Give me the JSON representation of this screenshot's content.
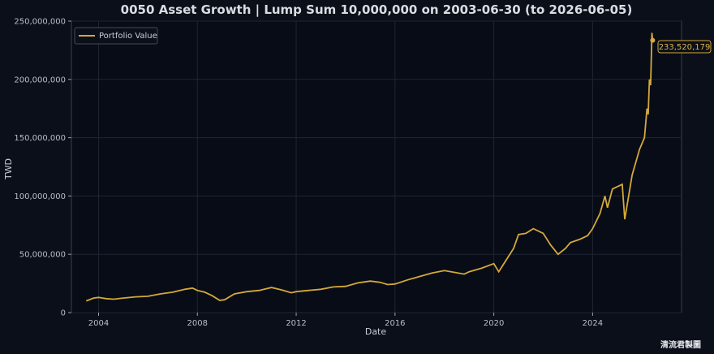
{
  "chart_data": {
    "type": "line",
    "title": "0050 Asset Growth | Lump Sum 10,000,000 on 2003-06-30 (to 2026-06-05)",
    "xlabel": "Date",
    "ylabel": "TWD",
    "x_ticks": [
      "2004",
      "2008",
      "2012",
      "2016",
      "2020",
      "2024"
    ],
    "y_ticks": [
      "0",
      "50,000,000",
      "100,000,000",
      "150,000,000",
      "200,000,000",
      "250,000,000"
    ],
    "xlim": [
      2002.9,
      2027.6
    ],
    "ylim": [
      0,
      250000000
    ],
    "grid": true,
    "legend_position": "top-left",
    "line_color": "#d4a93a",
    "series": [
      {
        "name": "Portfolio Value",
        "x": [
          2003.5,
          2003.8,
          2004.0,
          2004.3,
          2004.6,
          2005.0,
          2005.5,
          2006.0,
          2006.5,
          2007.0,
          2007.5,
          2007.8,
          2008.0,
          2008.3,
          2008.6,
          2008.9,
          2009.1,
          2009.5,
          2010.0,
          2010.5,
          2011.0,
          2011.4,
          2011.8,
          2012.0,
          2012.5,
          2013.0,
          2013.5,
          2014.0,
          2014.5,
          2015.0,
          2015.4,
          2015.7,
          2016.0,
          2016.5,
          2017.0,
          2017.5,
          2018.0,
          2018.8,
          2019.0,
          2019.5,
          2020.0,
          2020.2,
          2020.5,
          2020.8,
          2021.0,
          2021.3,
          2021.6,
          2022.0,
          2022.3,
          2022.6,
          2022.9,
          2023.1,
          2023.5,
          2023.8,
          2024.0,
          2024.3,
          2024.5,
          2024.6,
          2024.8,
          2025.0,
          2025.2,
          2025.3,
          2025.6,
          2025.9,
          2026.1,
          2026.2,
          2026.25,
          2026.3,
          2026.35,
          2026.4,
          2026.43
        ],
        "values": [
          10000000,
          12500000,
          13000000,
          12000000,
          11500000,
          12500000,
          13500000,
          14000000,
          16000000,
          17500000,
          20000000,
          21000000,
          19000000,
          17500000,
          14500000,
          10500000,
          11000000,
          16000000,
          18000000,
          19000000,
          21500000,
          19500000,
          17000000,
          18000000,
          19000000,
          20000000,
          22000000,
          22500000,
          25500000,
          27000000,
          26000000,
          24000000,
          24500000,
          28000000,
          31000000,
          34000000,
          36000000,
          33000000,
          35000000,
          38000000,
          42000000,
          35000000,
          45000000,
          55000000,
          67000000,
          68000000,
          72000000,
          68000000,
          58000000,
          50000000,
          55000000,
          60000000,
          63000000,
          66000000,
          72000000,
          85000000,
          100000000,
          90000000,
          106000000,
          108000000,
          110000000,
          80000000,
          118000000,
          140000000,
          150000000,
          175000000,
          170000000,
          200000000,
          195000000,
          240000000,
          233520179
        ]
      }
    ],
    "end_label": "233,520,179"
  },
  "watermark": "清流君製圖"
}
